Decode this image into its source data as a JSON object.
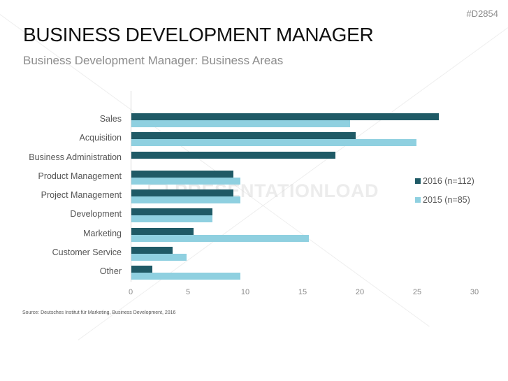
{
  "slide": {
    "code": "#D2854",
    "title": "BUSINESS DEVELOPMENT MANAGER",
    "subtitle": "Business Development Manager: Business Areas",
    "source": "Source: Deutsches Institut für Marketing, Business Development, 2016",
    "watermark": "PRESENTATIONLOAD"
  },
  "colors": {
    "series_2016": "#1f5a66",
    "series_2015": "#8fd0e0"
  },
  "chart_data": {
    "type": "bar",
    "orientation": "horizontal",
    "title": "Business Development Manager: Business Areas",
    "xlabel": "",
    "ylabel": "",
    "xlim": [
      0,
      30
    ],
    "x_ticks": [
      "0",
      "5",
      "10",
      "15",
      "20",
      "25",
      "30"
    ],
    "grid": false,
    "legend_position": "right",
    "categories": [
      "Sales",
      "Acquisition",
      "Business Administration",
      "Product Management",
      "Project Management",
      "Development",
      "Marketing",
      "Customer Service",
      "Other"
    ],
    "series": [
      {
        "name": "2016 (n=112)",
        "color": "#1f5a66",
        "values": [
          26.8,
          19.6,
          17.8,
          8.9,
          8.9,
          7.1,
          5.4,
          3.6,
          1.8
        ]
      },
      {
        "name": "2015 (n=85)",
        "color": "#8fd0e0",
        "values": [
          19.1,
          24.9,
          0,
          9.5,
          9.5,
          7.1,
          15.5,
          4.8,
          9.5
        ]
      }
    ]
  }
}
